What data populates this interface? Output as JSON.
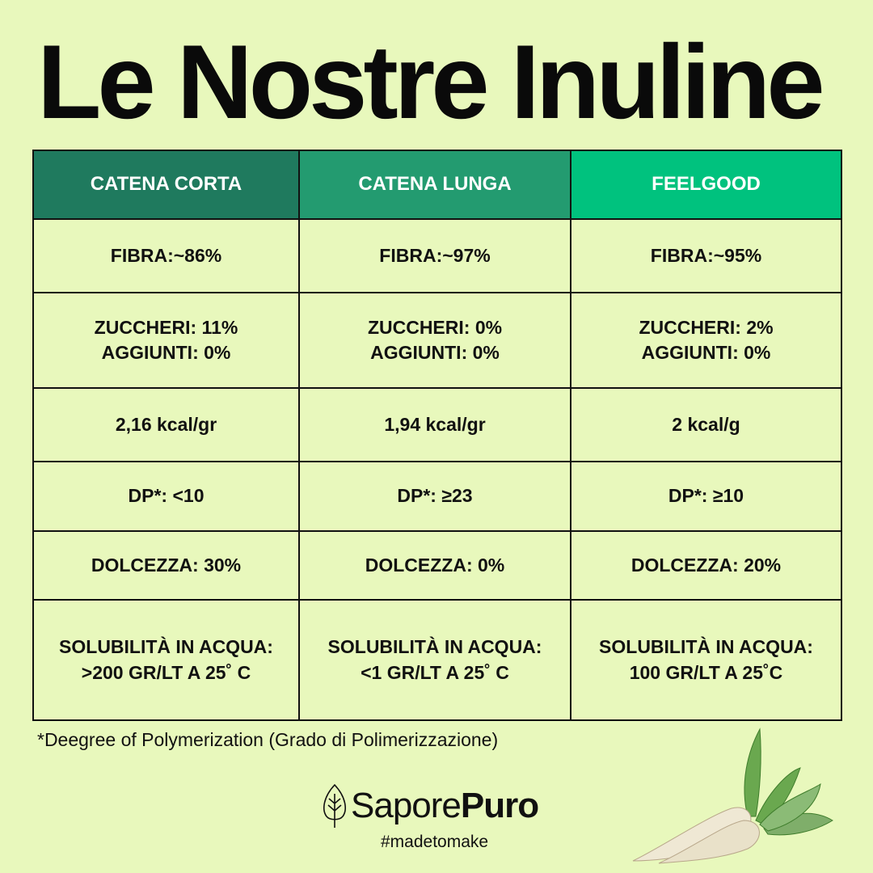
{
  "title": "Le Nostre Inuline",
  "colors": {
    "background": "#e8f8bc",
    "header_1": "#1f7a5e",
    "header_2": "#239b70",
    "header_3": "#00c27e"
  },
  "table": {
    "headers": [
      "CATENA CORTA",
      "CATENA LUNGA",
      "FEELGOOD"
    ],
    "rows": [
      [
        [
          "FIBRA:~86%"
        ],
        [
          "FIBRA:~97%"
        ],
        [
          "FIBRA:~95%"
        ]
      ],
      [
        [
          "ZUCCHERI: 11%",
          "AGGIUNTI: 0%"
        ],
        [
          "ZUCCHERI: 0%",
          "AGGIUNTI: 0%"
        ],
        [
          "ZUCCHERI: 2%",
          "AGGIUNTI: 0%"
        ]
      ],
      [
        [
          "2,16 kcal/gr"
        ],
        [
          "1,94 kcal/gr"
        ],
        [
          "2 kcal/g"
        ]
      ],
      [
        [
          "DP*: <10"
        ],
        [
          "DP*: ≥23"
        ],
        [
          "DP*: ≥10"
        ]
      ],
      [
        [
          "DOLCEZZA: 30%"
        ],
        [
          "DOLCEZZA: 0%"
        ],
        [
          "DOLCEZZA: 20%"
        ]
      ],
      [
        [
          "SOLUBILITÀ IN ACQUA:",
          ">200 GR/LT A 25˚ C"
        ],
        [
          "SOLUBILITÀ IN ACQUA:",
          "<1 GR/LT A 25˚ C"
        ],
        [
          "SOLUBILITÀ IN ACQUA:",
          "100 GR/LT A 25˚C"
        ]
      ]
    ]
  },
  "footnote": "*Deegree of Polymerization (Grado di Polimerizzazione)",
  "brand": {
    "name_light": "Sapore",
    "name_bold": "Puro",
    "icon": "leaf-icon",
    "tagline": "#madetomake"
  },
  "image": "sugar-beet-illustration"
}
